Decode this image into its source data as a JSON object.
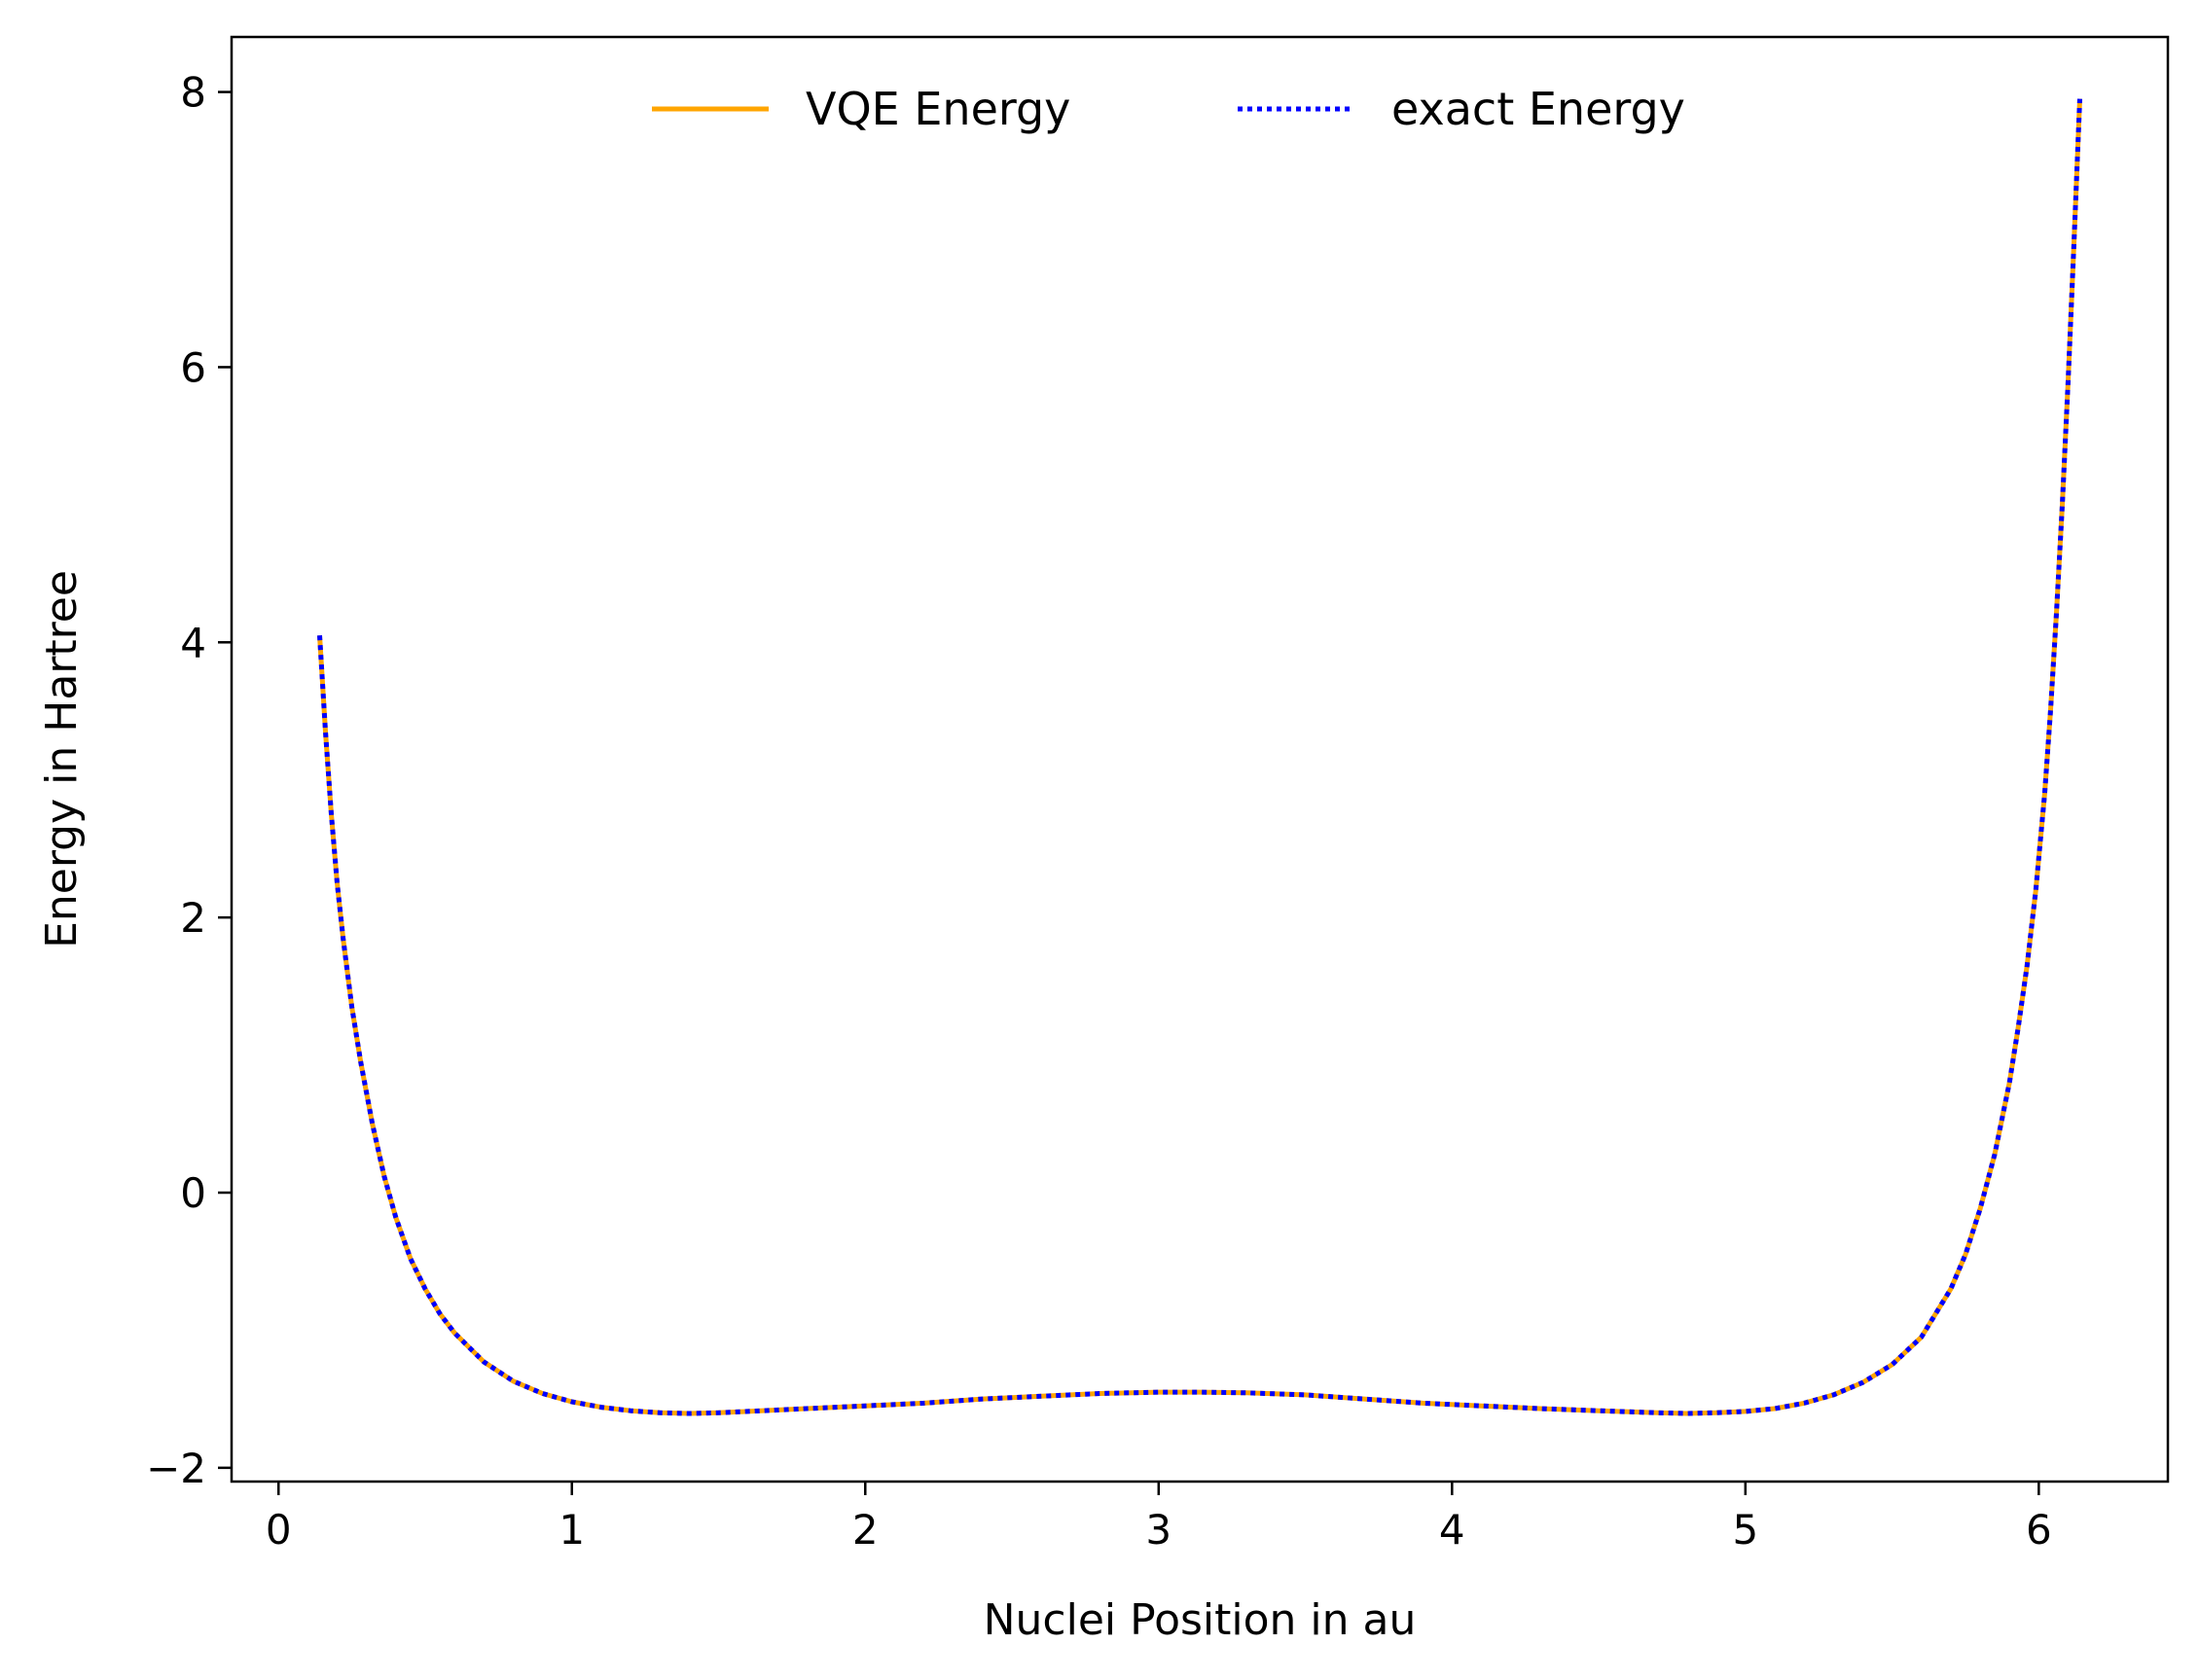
{
  "chart_data": {
    "type": "line",
    "title": "",
    "xlabel": "Nuclei Position in au",
    "ylabel": "Energy in Hartree",
    "xlim": [
      -0.16,
      6.44
    ],
    "ylim": [
      -2.1,
      8.4
    ],
    "xticks": [
      0,
      1,
      2,
      3,
      4,
      5,
      6
    ],
    "xtick_labels": [
      "0",
      "1",
      "2",
      "3",
      "4",
      "5",
      "6"
    ],
    "yticks": [
      -2,
      0,
      2,
      4,
      6,
      8
    ],
    "ytick_labels": [
      "−2",
      "0",
      "2",
      "4",
      "6",
      "8"
    ],
    "grid": false,
    "legend_position": "top-center",
    "x": [
      0.14,
      0.16,
      0.18,
      0.2,
      0.22,
      0.25,
      0.28,
      0.32,
      0.36,
      0.4,
      0.45,
      0.5,
      0.55,
      0.6,
      0.7,
      0.8,
      0.9,
      1.0,
      1.1,
      1.2,
      1.3,
      1.4,
      1.5,
      1.6,
      1.8,
      2.0,
      2.2,
      2.4,
      2.6,
      2.8,
      3.0,
      3.14,
      3.3,
      3.5,
      3.7,
      3.9,
      4.1,
      4.3,
      4.5,
      4.7,
      4.8,
      4.9,
      5.0,
      5.1,
      5.2,
      5.3,
      5.4,
      5.5,
      5.6,
      5.7,
      5.75,
      5.8,
      5.85,
      5.9,
      5.93,
      5.96,
      5.99,
      6.02,
      6.04,
      6.06,
      6.08,
      6.1,
      6.12,
      6.14
    ],
    "series": [
      {
        "name": "VQE Energy",
        "color": "#ffa500",
        "style": "solid",
        "values": [
          4.05,
          3.35,
          2.75,
          2.25,
          1.85,
          1.35,
          0.95,
          0.5,
          0.12,
          -0.18,
          -0.48,
          -0.7,
          -0.88,
          -1.02,
          -1.23,
          -1.37,
          -1.46,
          -1.52,
          -1.56,
          -1.585,
          -1.6,
          -1.605,
          -1.6,
          -1.59,
          -1.57,
          -1.55,
          -1.53,
          -1.5,
          -1.48,
          -1.46,
          -1.45,
          -1.45,
          -1.455,
          -1.47,
          -1.5,
          -1.53,
          -1.55,
          -1.57,
          -1.585,
          -1.6,
          -1.605,
          -1.6,
          -1.59,
          -1.57,
          -1.53,
          -1.47,
          -1.38,
          -1.25,
          -1.05,
          -0.7,
          -0.45,
          -0.12,
          0.28,
          0.8,
          1.2,
          1.65,
          2.2,
          2.9,
          3.5,
          4.2,
          5.0,
          5.9,
          6.9,
          7.95
        ]
      },
      {
        "name": "exact Energy",
        "color": "#0000ff",
        "style": "dotted",
        "values": [
          4.05,
          3.35,
          2.75,
          2.25,
          1.85,
          1.35,
          0.95,
          0.5,
          0.12,
          -0.18,
          -0.48,
          -0.7,
          -0.88,
          -1.02,
          -1.23,
          -1.37,
          -1.46,
          -1.52,
          -1.56,
          -1.585,
          -1.6,
          -1.605,
          -1.6,
          -1.59,
          -1.57,
          -1.55,
          -1.53,
          -1.5,
          -1.48,
          -1.46,
          -1.45,
          -1.45,
          -1.455,
          -1.47,
          -1.5,
          -1.53,
          -1.55,
          -1.57,
          -1.585,
          -1.6,
          -1.605,
          -1.6,
          -1.59,
          -1.57,
          -1.53,
          -1.47,
          -1.38,
          -1.25,
          -1.05,
          -0.7,
          -0.45,
          -0.12,
          0.28,
          0.8,
          1.2,
          1.65,
          2.2,
          2.9,
          3.5,
          4.2,
          5.0,
          5.9,
          6.9,
          7.95
        ]
      }
    ]
  }
}
